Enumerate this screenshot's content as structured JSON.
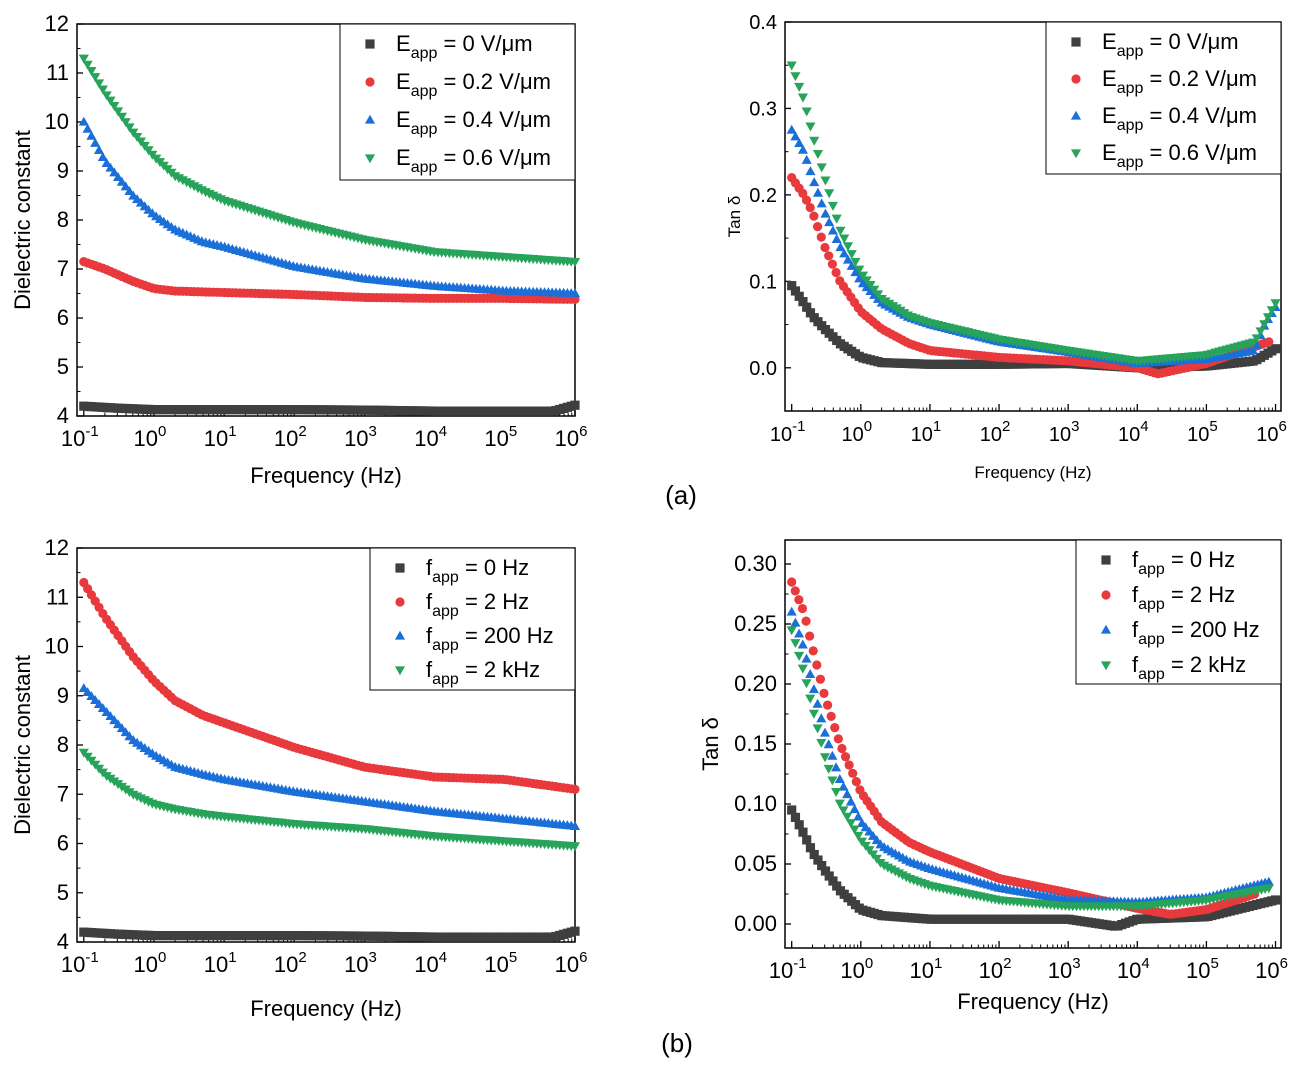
{
  "panel_labels": {
    "a": "(a)",
    "b": "(b)"
  },
  "colors": {
    "black": "#3f3f3f",
    "red": "#e8393d",
    "blue": "#1a6fd9",
    "green": "#27a35a"
  },
  "chart_data": [
    {
      "id": "a-left",
      "type": "scatter",
      "title": "",
      "xlabel": "Frequency (Hz)",
      "ylabel": "Dielectric constant",
      "xscale": "log",
      "xlim": [
        0.08,
        1000000
      ],
      "ylim": [
        4,
        12
      ],
      "yticks": [
        4,
        5,
        6,
        7,
        8,
        9,
        10,
        11,
        12
      ],
      "xtick_exponents": [
        "-1",
        "0",
        "1",
        "2",
        "3",
        "4",
        "5",
        "6"
      ],
      "legend_position": "top-right",
      "legend_var": "E",
      "series": [
        {
          "name": "0 V/μm",
          "color": "#3f3f3f",
          "marker": "square",
          "x": [
            0.1,
            0.3,
            1,
            10,
            100,
            1000,
            10000,
            100000,
            500000,
            1000000
          ],
          "y": [
            4.2,
            4.16,
            4.13,
            4.13,
            4.13,
            4.12,
            4.1,
            4.1,
            4.1,
            4.22
          ]
        },
        {
          "name": "0.2 V/μm",
          "color": "#e8393d",
          "marker": "circle",
          "x": [
            0.1,
            0.2,
            0.5,
            1,
            2,
            10,
            100,
            1000,
            10000,
            100000,
            1000000
          ],
          "y": [
            7.15,
            7.0,
            6.75,
            6.6,
            6.55,
            6.52,
            6.48,
            6.42,
            6.4,
            6.4,
            6.38
          ]
        },
        {
          "name": "0.4 V/μm",
          "color": "#1a6fd9",
          "marker": "triangle-up",
          "x": [
            0.1,
            0.2,
            0.5,
            1,
            2,
            5,
            10,
            100,
            1000,
            10000,
            100000,
            1000000
          ],
          "y": [
            10.0,
            9.2,
            8.5,
            8.1,
            7.8,
            7.55,
            7.45,
            7.05,
            6.8,
            6.65,
            6.55,
            6.5
          ]
        },
        {
          "name": "0.6 V/μm",
          "color": "#27a35a",
          "marker": "triangle-down",
          "x": [
            0.1,
            0.2,
            0.5,
            1,
            2,
            5,
            10,
            100,
            1000,
            10000,
            100000,
            1000000
          ],
          "y": [
            11.3,
            10.6,
            9.8,
            9.3,
            8.9,
            8.6,
            8.4,
            7.95,
            7.6,
            7.35,
            7.25,
            7.15
          ]
        }
      ]
    },
    {
      "id": "a-right",
      "type": "scatter",
      "title": "",
      "xlabel": "Frequency (Hz)",
      "ylabel": "Tan δ",
      "xscale": "log",
      "xlim": [
        0.08,
        1200000
      ],
      "ylim": [
        -0.05,
        0.4
      ],
      "yticks": [
        0.0,
        0.1,
        0.2,
        0.3,
        0.4
      ],
      "ytick_labels": [
        "0.0",
        "0.1",
        "0.2",
        "0.3",
        "0.4"
      ],
      "xtick_exponents": [
        "-1",
        "0",
        "1",
        "2",
        "3",
        "4",
        "5",
        "6"
      ],
      "legend_position": "top-right",
      "legend_var": "E",
      "series": [
        {
          "name": "0 V/μm",
          "color": "#3f3f3f",
          "marker": "square",
          "x": [
            0.1,
            0.15,
            0.2,
            0.3,
            0.5,
            1,
            2,
            10,
            100,
            1000,
            10000,
            100000,
            500000,
            1000000
          ],
          "y": [
            0.095,
            0.075,
            0.06,
            0.045,
            0.028,
            0.012,
            0.006,
            0.004,
            0.004,
            0.005,
            0.0,
            0.002,
            0.008,
            0.022
          ]
        },
        {
          "name": "0.2 V/μm",
          "color": "#e8393d",
          "marker": "circle",
          "x": [
            0.1,
            0.15,
            0.2,
            0.3,
            0.5,
            1,
            2,
            5,
            10,
            100,
            1000,
            10000,
            20000,
            100000,
            800000
          ],
          "y": [
            0.22,
            0.2,
            0.18,
            0.14,
            0.1,
            0.065,
            0.045,
            0.028,
            0.02,
            0.012,
            0.008,
            0.0,
            -0.007,
            0.005,
            0.03
          ]
        },
        {
          "name": "0.4 V/μm",
          "color": "#1a6fd9",
          "marker": "triangle-up",
          "x": [
            0.1,
            0.15,
            0.2,
            0.3,
            0.5,
            1,
            2,
            5,
            10,
            100,
            1000,
            10000,
            100000,
            500000,
            700000,
            1000000
          ],
          "y": [
            0.275,
            0.25,
            0.22,
            0.18,
            0.14,
            0.1,
            0.075,
            0.058,
            0.05,
            0.03,
            0.018,
            0.005,
            0.01,
            0.02,
            0.05,
            0.07
          ]
        },
        {
          "name": "0.6 V/μm",
          "color": "#27a35a",
          "marker": "triangle-down",
          "x": [
            0.1,
            0.15,
            0.2,
            0.3,
            0.5,
            1,
            2,
            5,
            10,
            100,
            1000,
            10000,
            100000,
            500000,
            1000000
          ],
          "y": [
            0.35,
            0.31,
            0.27,
            0.22,
            0.16,
            0.11,
            0.08,
            0.06,
            0.052,
            0.033,
            0.02,
            0.008,
            0.015,
            0.03,
            0.075
          ]
        }
      ]
    },
    {
      "id": "b-left",
      "type": "scatter",
      "title": "",
      "xlabel": "Frequency (Hz)",
      "ylabel": "Dielectric constant",
      "xscale": "log",
      "xlim": [
        0.08,
        1000000
      ],
      "ylim": [
        4,
        12
      ],
      "yticks": [
        4,
        5,
        6,
        7,
        8,
        9,
        10,
        11,
        12
      ],
      "xtick_exponents": [
        "-1",
        "0",
        "1",
        "2",
        "3",
        "4",
        "5",
        "6"
      ],
      "legend_position": "top-right",
      "legend_var": "f",
      "series": [
        {
          "name": "0 Hz",
          "color": "#3f3f3f",
          "marker": "square",
          "x": [
            0.1,
            0.3,
            1,
            10,
            100,
            1000,
            10000,
            100000,
            500000,
            1000000
          ],
          "y": [
            4.2,
            4.16,
            4.13,
            4.13,
            4.13,
            4.12,
            4.1,
            4.1,
            4.1,
            4.22
          ]
        },
        {
          "name": "2 Hz",
          "color": "#e8393d",
          "marker": "circle",
          "x": [
            0.1,
            0.2,
            0.5,
            1,
            2,
            5,
            10,
            100,
            1000,
            10000,
            100000,
            1000000
          ],
          "y": [
            11.3,
            10.6,
            9.8,
            9.3,
            8.9,
            8.6,
            8.45,
            7.95,
            7.55,
            7.35,
            7.3,
            7.1
          ]
        },
        {
          "name": "200 Hz",
          "color": "#1a6fd9",
          "marker": "triangle-up",
          "x": [
            0.1,
            0.2,
            0.5,
            1,
            2,
            5,
            10,
            100,
            1000,
            10000,
            100000,
            1000000
          ],
          "y": [
            9.15,
            8.7,
            8.1,
            7.8,
            7.55,
            7.4,
            7.3,
            7.05,
            6.85,
            6.65,
            6.5,
            6.35
          ]
        },
        {
          "name": "2 kHz",
          "color": "#27a35a",
          "marker": "triangle-down",
          "x": [
            0.1,
            0.2,
            0.5,
            1,
            2,
            5,
            10,
            100,
            1000,
            10000,
            100000,
            1000000
          ],
          "y": [
            7.85,
            7.4,
            7.0,
            6.8,
            6.7,
            6.6,
            6.55,
            6.4,
            6.3,
            6.15,
            6.05,
            5.95
          ]
        }
      ]
    },
    {
      "id": "b-right",
      "type": "scatter",
      "title": "",
      "xlabel": "Frequency (Hz)",
      "ylabel": "Tan δ",
      "xscale": "log",
      "xlim": [
        0.08,
        1200000
      ],
      "ylim": [
        -0.02,
        0.32
      ],
      "yticks": [
        0.0,
        0.05,
        0.1,
        0.15,
        0.2,
        0.25,
        0.3
      ],
      "ytick_labels": [
        "0.00",
        "0.05",
        "0.10",
        "0.15",
        "0.20",
        "0.25",
        "0.30"
      ],
      "xtick_exponents": [
        "-1",
        "0",
        "1",
        "2",
        "3",
        "4",
        "5",
        "6"
      ],
      "legend_position": "top-right",
      "legend_var": "f",
      "series": [
        {
          "name": "0 Hz",
          "color": "#3f3f3f",
          "marker": "square",
          "x": [
            0.1,
            0.15,
            0.2,
            0.3,
            0.5,
            1,
            2,
            10,
            100,
            1000,
            5000,
            10000,
            100000,
            1000000
          ],
          "y": [
            0.095,
            0.075,
            0.06,
            0.045,
            0.028,
            0.012,
            0.007,
            0.004,
            0.004,
            0.004,
            -0.002,
            0.004,
            0.006,
            0.02
          ]
        },
        {
          "name": "2 Hz",
          "color": "#e8393d",
          "marker": "circle",
          "x": [
            0.1,
            0.15,
            0.2,
            0.3,
            0.5,
            1,
            2,
            5,
            10,
            100,
            1000,
            10000,
            30000,
            100000,
            500000
          ],
          "y": [
            0.285,
            0.26,
            0.23,
            0.19,
            0.15,
            0.11,
            0.085,
            0.068,
            0.06,
            0.038,
            0.026,
            0.013,
            0.008,
            0.012,
            0.025
          ]
        },
        {
          "name": "200 Hz",
          "color": "#1a6fd9",
          "marker": "triangle-up",
          "x": [
            0.1,
            0.15,
            0.2,
            0.3,
            0.5,
            1,
            2,
            5,
            10,
            100,
            1000,
            10000,
            100000,
            800000
          ],
          "y": [
            0.26,
            0.23,
            0.2,
            0.16,
            0.12,
            0.085,
            0.065,
            0.052,
            0.046,
            0.03,
            0.02,
            0.018,
            0.022,
            0.035
          ]
        },
        {
          "name": "2 kHz",
          "color": "#27a35a",
          "marker": "triangle-down",
          "x": [
            0.1,
            0.15,
            0.2,
            0.3,
            0.5,
            1,
            2,
            5,
            10,
            100,
            1000,
            10000,
            100000,
            800000
          ],
          "y": [
            0.245,
            0.21,
            0.18,
            0.14,
            0.1,
            0.07,
            0.05,
            0.038,
            0.032,
            0.02,
            0.015,
            0.015,
            0.02,
            0.03
          ]
        }
      ]
    }
  ]
}
